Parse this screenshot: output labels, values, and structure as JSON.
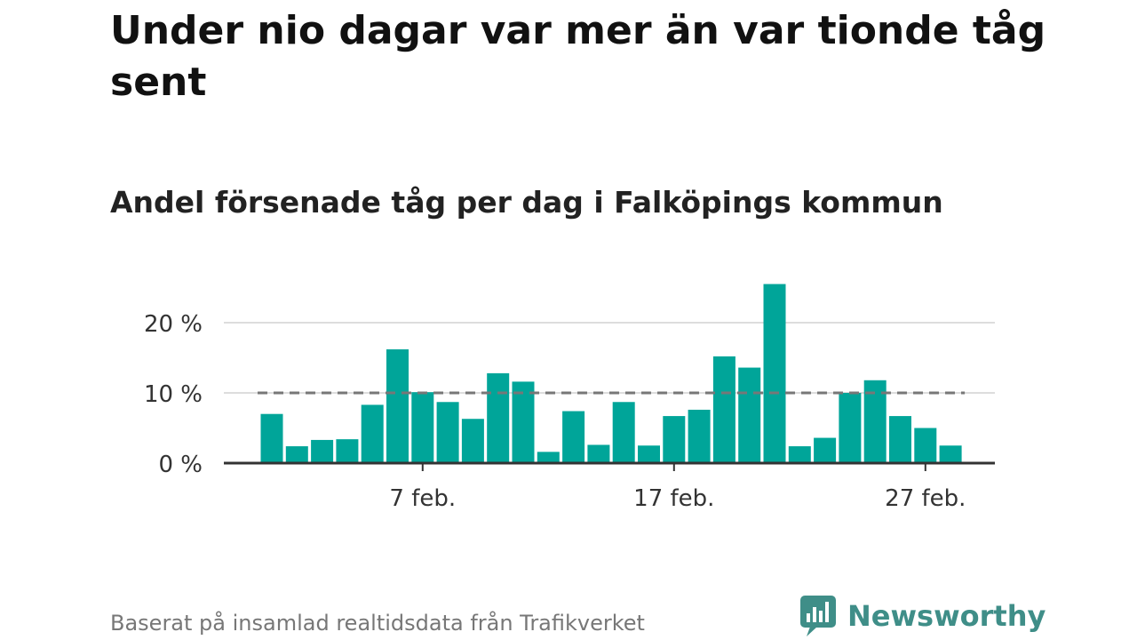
{
  "title": "Under nio dagar var mer än var tionde tåg sent",
  "subtitle": "Andel försenade tåg per dag i Falköpings kommun",
  "footer": "Baserat på insamlad realtidsdata från Trafikverket",
  "brand": {
    "name": "Newsworthy",
    "icon": "newsworthy-logo-icon",
    "color": "#3f8e88"
  },
  "chart_data": {
    "type": "bar",
    "x": [
      "2026-02-01",
      "2026-02-02",
      "2026-02-03",
      "2026-02-04",
      "2026-02-05",
      "2026-02-06",
      "2026-02-07",
      "2026-02-08",
      "2026-02-09",
      "2026-02-10",
      "2026-02-11",
      "2026-02-12",
      "2026-02-13",
      "2026-02-14",
      "2026-02-15",
      "2026-02-16",
      "2026-02-17",
      "2026-02-18",
      "2026-02-19",
      "2026-02-20",
      "2026-02-21",
      "2026-02-22",
      "2026-02-23",
      "2026-02-24",
      "2026-02-25",
      "2026-02-26",
      "2026-02-27",
      "2026-02-28"
    ],
    "values": [
      7,
      2.4,
      3.3,
      3.4,
      8.3,
      16.2,
      10.1,
      8.7,
      6.3,
      12.8,
      11.6,
      1.6,
      7.4,
      2.6,
      8.7,
      2.5,
      6.7,
      7.6,
      15.2,
      13.6,
      25.5,
      2.4,
      3.6,
      10,
      11.8,
      6.7,
      5,
      2.5
    ],
    "reference_line": {
      "value": 10,
      "style": "dashed",
      "color": "#777777"
    },
    "bar_color": "#00a599",
    "y_ticks": [
      0,
      10,
      20
    ],
    "y_tick_labels": [
      "0 %",
      "10 %",
      "20 %"
    ],
    "x_ticks": [
      "7 feb.",
      "17 feb.",
      "27 feb."
    ],
    "x_tick_days": [
      7,
      17,
      27
    ],
    "ylim": [
      0,
      26
    ],
    "grid": true,
    "xlabel": "",
    "ylabel": ""
  }
}
